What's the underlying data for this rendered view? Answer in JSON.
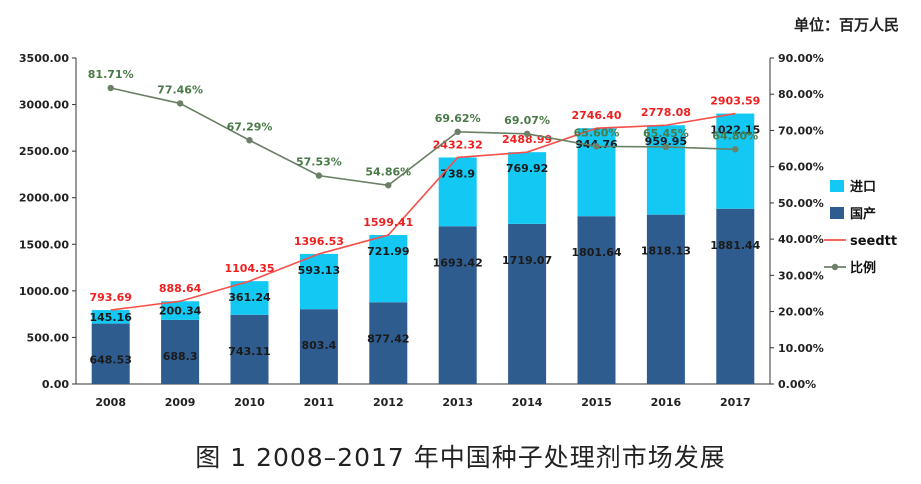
{
  "unit_label": "单位：百万人民",
  "caption": "图 1 2008–2017 年中国种子处理剂市场发展",
  "colors": {
    "domestic": "#2e5c8e",
    "import": "#14c8f4",
    "total_line": "#f5514a",
    "ratio_line": "#6b8067",
    "total_label": "#f02020",
    "ratio_label": "#4a7a48",
    "bar_label": "#1a1a1a",
    "axis": "#333333"
  },
  "chart_data": {
    "type": "bar",
    "stacked": true,
    "categories": [
      "2008",
      "2009",
      "2010",
      "2011",
      "2012",
      "2013",
      "2014",
      "2015",
      "2016",
      "2017"
    ],
    "series": [
      {
        "name": "国产",
        "axis": "left",
        "kind": "bar",
        "values": [
          648.53,
          688.3,
          743.11,
          803.4,
          877.42,
          1693.42,
          1719.07,
          1801.64,
          1818.13,
          1881.44
        ],
        "labels": [
          "648.53",
          "688.3",
          "743.11",
          "803.4",
          "877.42",
          "1693.42",
          "1719.07",
          "1801.64",
          "1818.13",
          "1881.44"
        ]
      },
      {
        "name": "进口",
        "axis": "left",
        "kind": "bar",
        "values": [
          145.16,
          200.34,
          361.24,
          593.13,
          721.99,
          738.9,
          769.92,
          944.76,
          959.95,
          1022.15
        ],
        "labels": [
          "145.16",
          "200.34",
          "361.24",
          "593.13",
          "721.99",
          "738.9",
          "769.92",
          "944.76",
          "959.95",
          "1022.15"
        ]
      },
      {
        "name": "seedtt",
        "axis": "left",
        "kind": "line",
        "values": [
          793.69,
          888.64,
          1104.35,
          1396.53,
          1599.41,
          2432.32,
          2488.99,
          2746.4,
          2778.08,
          2903.59
        ],
        "labels": [
          "793.69",
          "888.64",
          "1104.35",
          "1396.53",
          "1599.41",
          "2432.32",
          "2488.99",
          "2746.40",
          "2778.08",
          "2903.59"
        ]
      },
      {
        "name": "比例",
        "axis": "right",
        "kind": "line",
        "values": [
          81.71,
          77.46,
          67.29,
          57.53,
          54.86,
          69.62,
          69.07,
          65.6,
          65.45,
          64.8
        ],
        "labels": [
          "81.71%",
          "77.46%",
          "67.29%",
          "57.53%",
          "54.86%",
          "69.62%",
          "69.07%",
          "65.60%",
          "65.45%",
          "64.80%"
        ]
      }
    ],
    "ylim_left": [
      0,
      3500
    ],
    "ylim_right": [
      0,
      90
    ],
    "yticks_left": [
      "0.00",
      "500.00",
      "1000.00",
      "1500.00",
      "2000.00",
      "2500.00",
      "3000.00",
      "3500.00"
    ],
    "yticks_right": [
      "0.00%",
      "10.00%",
      "20.00%",
      "30.00%",
      "40.00%",
      "50.00%",
      "60.00%",
      "70.00%",
      "80.00%",
      "90.00%"
    ],
    "grid": false,
    "legend": "right"
  }
}
